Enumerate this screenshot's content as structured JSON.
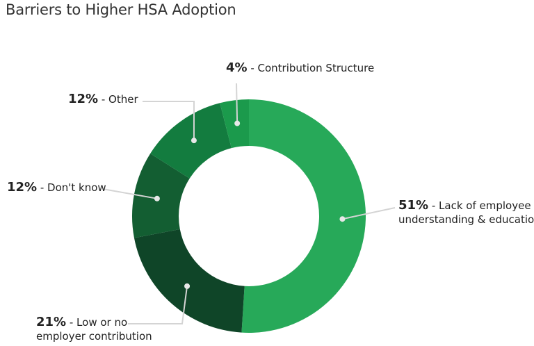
{
  "title": "Barriers to Higher HSA Adoption",
  "chart_data": {
    "type": "pie",
    "donut": true,
    "slices": [
      {
        "pct": "51%",
        "value": 51,
        "label": "Lack of employee understanding & education",
        "label_lines": [
          "Lack of employee",
          "understanding & education"
        ],
        "color": "#27a959"
      },
      {
        "pct": "21%",
        "value": 21,
        "label": "Low or no employer contribution",
        "label_lines": [
          "Low or no",
          "employer contribution"
        ],
        "color": "#0f4528"
      },
      {
        "pct": "12%",
        "value": 12,
        "label": "Don't know",
        "label_lines": [
          "Don't know"
        ],
        "color": "#135e32"
      },
      {
        "pct": "12%",
        "value": 12,
        "label": "Other",
        "label_lines": [
          "Other"
        ],
        "color": "#137c3f"
      },
      {
        "pct": "4%",
        "value": 4,
        "label": "Contribution Structure",
        "label_lines": [
          "Contribution Structure"
        ],
        "color": "#1b9a4c"
      }
    ]
  }
}
